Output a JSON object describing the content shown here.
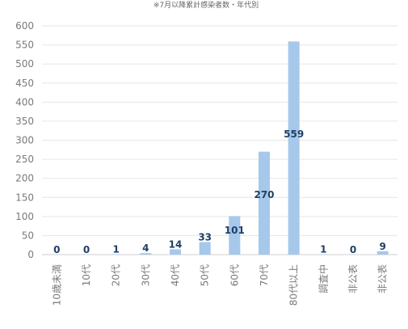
{
  "chart_data": {
    "type": "bar",
    "title": "※7月以降累計感染者数・年代別",
    "categories": [
      "10歳未満",
      "10代",
      "20代",
      "30代",
      "40代",
      "50代",
      "60代",
      "70代",
      "80代以上",
      "調査中",
      "非公表",
      "非公表"
    ],
    "values": [
      0,
      0,
      1,
      4,
      14,
      33,
      101,
      270,
      559,
      1,
      0,
      9
    ],
    "data_labels": [
      "0",
      "0",
      "1",
      "4",
      "14",
      "33",
      "101",
      "270",
      "559",
      "1",
      "0",
      "9"
    ],
    "xlabel": "",
    "ylabel": "",
    "ylim": [
      0,
      600
    ],
    "yticks": [
      0,
      50,
      100,
      150,
      200,
      250,
      300,
      350,
      400,
      450,
      500,
      550,
      600
    ],
    "grid": true,
    "legend": "none",
    "bar_color": "#a6c8ea",
    "label_color": "#1f3f66"
  }
}
